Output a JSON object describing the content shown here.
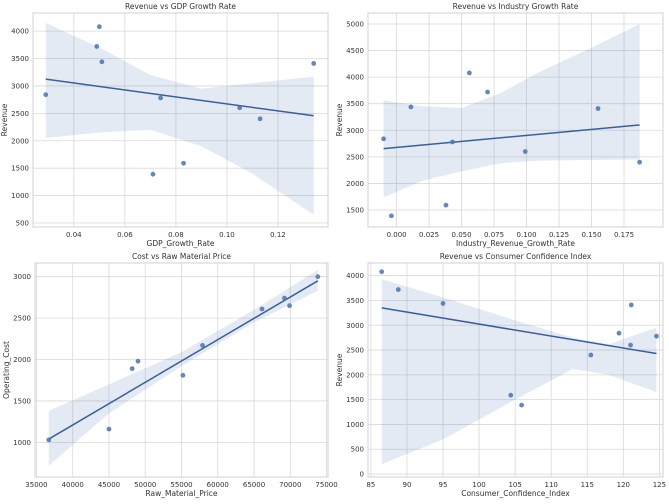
{
  "colors": {
    "points": "#4c72b0",
    "line": "#3a5f9e",
    "band": "#4c72b0",
    "grid": "#d9d9d9",
    "frame": "#d0d0d0"
  },
  "chart_data": [
    {
      "type": "scatter",
      "title": "Revenue vs GDP Growth Rate",
      "xlabel": "GDP_Growth_Rate",
      "ylabel": "Revenue",
      "xlim": [
        0.024,
        0.1396
      ],
      "ylim": [
        427,
        4330
      ],
      "xticks": [
        0.04,
        0.06,
        0.08,
        0.1,
        0.12
      ],
      "xtick_labels": [
        "0.04",
        "0.06",
        "0.08",
        "0.10",
        "0.12"
      ],
      "yticks": [
        500,
        1000,
        1500,
        2000,
        2500,
        3000,
        3500,
        4000
      ],
      "ytick_labels": [
        "500",
        "1000",
        "1500",
        "2000",
        "2500",
        "3000",
        "3500",
        "4000"
      ],
      "grid": true,
      "points": {
        "x": [
          0.029,
          0.049,
          0.05,
          0.051,
          0.071,
          0.074,
          0.083,
          0.105,
          0.113,
          0.134
        ],
        "y": [
          2840,
          3720,
          4080,
          3440,
          1390,
          2780,
          1590,
          2600,
          2400,
          3410
        ]
      },
      "regression": {
        "x": [
          0.029,
          0.134
        ],
        "y": [
          3125,
          2455
        ]
      },
      "ci_band": {
        "x": [
          0.029,
          0.05,
          0.07,
          0.09,
          0.11,
          0.134
        ],
        "upper": [
          4150,
          3700,
          3200,
          2950,
          3050,
          3170
        ],
        "lower": [
          2050,
          2150,
          2200,
          1900,
          1400,
          650
        ]
      }
    },
    {
      "type": "scatter",
      "title": "Revenue vs Industry Growth Rate",
      "xlabel": "Industry_Revenue_Growth_Rate",
      "ylabel": "Revenue",
      "xlim": [
        -0.022,
        0.205
      ],
      "ylim": [
        1180,
        5207
      ],
      "xticks": [
        0.0,
        0.025,
        0.05,
        0.075,
        0.1,
        0.125,
        0.15,
        0.175
      ],
      "xtick_labels": [
        "0.000",
        "0.025",
        "0.050",
        "0.075",
        "0.100",
        "0.125",
        "0.150",
        "0.175"
      ],
      "yticks": [
        1500,
        2000,
        2500,
        3000,
        3500,
        4000,
        4500,
        5000
      ],
      "ytick_labels": [
        "1500",
        "2000",
        "2500",
        "3000",
        "3500",
        "4000",
        "4500",
        "5000"
      ],
      "grid": true,
      "points": {
        "x": [
          -0.01,
          -0.004,
          0.011,
          0.038,
          0.043,
          0.056,
          0.07,
          0.099,
          0.155,
          0.187
        ],
        "y": [
          2840,
          1390,
          3440,
          1590,
          2780,
          4080,
          3720,
          2600,
          3410,
          2400
        ]
      },
      "regression": {
        "x": [
          -0.01,
          0.187
        ],
        "y": [
          2655,
          3100
        ]
      },
      "ci_band": {
        "x": [
          -0.01,
          0.02,
          0.05,
          0.08,
          0.11,
          0.15,
          0.187
        ],
        "upper": [
          3560,
          3450,
          3420,
          3700,
          4100,
          4550,
          5000
        ],
        "lower": [
          1740,
          2050,
          2230,
          2380,
          2430,
          2440,
          2450
        ]
      }
    },
    {
      "type": "scatter",
      "title": "Cost vs Raw Material Price",
      "xlabel": "Raw_Material_Price",
      "ylabel": "Operating_Cost",
      "xlim": [
        34800,
        75200
      ],
      "ylim": [
        582,
        3165
      ],
      "xticks": [
        35000,
        40000,
        45000,
        50000,
        55000,
        60000,
        65000,
        70000,
        75000
      ],
      "xtick_labels": [
        "35000",
        "40000",
        "45000",
        "50000",
        "55000",
        "60000",
        "65000",
        "70000",
        "75000"
      ],
      "yticks": [
        1000,
        1500,
        2000,
        2500,
        3000
      ],
      "ytick_labels": [
        "1000",
        "1500",
        "2000",
        "2500",
        "3000"
      ],
      "grid": true,
      "points": {
        "x": [
          36700,
          45000,
          48200,
          49000,
          55200,
          57900,
          66100,
          69200,
          69900,
          73800
        ],
        "y": [
          1030,
          1160,
          1890,
          1980,
          1810,
          2170,
          2610,
          2740,
          2650,
          3000
        ]
      },
      "regression": {
        "x": [
          36700,
          73800
        ],
        "y": [
          1040,
          2950
        ]
      },
      "ci_band": {
        "x": [
          36700,
          45000,
          55000,
          65000,
          73800
        ],
        "upper": [
          1380,
          1700,
          2090,
          2600,
          3080
        ],
        "lower": [
          720,
          1350,
          1920,
          2450,
          2830
        ]
      }
    },
    {
      "type": "scatter",
      "title": "Revenue vs Consumer Confidence Index",
      "xlabel": "Consumer_Confidence_Index",
      "ylabel": "Revenue",
      "xlim": [
        84.6,
        125.5
      ],
      "ylim": [
        -60,
        4256
      ],
      "xticks": [
        85,
        90,
        95,
        100,
        105,
        110,
        115,
        120,
        125
      ],
      "xtick_labels": [
        "85",
        "90",
        "95",
        "100",
        "105",
        "110",
        "115",
        "120",
        "125"
      ],
      "yticks": [
        0,
        500,
        1000,
        1500,
        2000,
        2500,
        3000,
        3500,
        4000
      ],
      "ytick_labels": [
        "0",
        "500",
        "1000",
        "1500",
        "2000",
        "2500",
        "3000",
        "3500",
        "4000"
      ],
      "grid": true,
      "points": {
        "x": [
          86.5,
          88.8,
          95,
          104.4,
          105.9,
          115.5,
          119.4,
          121.0,
          121.1,
          124.6
        ],
        "y": [
          4080,
          3720,
          3440,
          1590,
          1390,
          2400,
          2840,
          2600,
          3410,
          2780
        ]
      },
      "regression": {
        "x": [
          86.5,
          124.6
        ],
        "y": [
          3350,
          2430
        ]
      },
      "ci_band": {
        "x": [
          86.5,
          95,
          105,
          113,
          118,
          124.6
        ],
        "upper": [
          3930,
          3560,
          3100,
          2750,
          2620,
          2950
        ],
        "lower": [
          200,
          700,
          1500,
          2120,
          2000,
          1650
        ]
      }
    }
  ]
}
